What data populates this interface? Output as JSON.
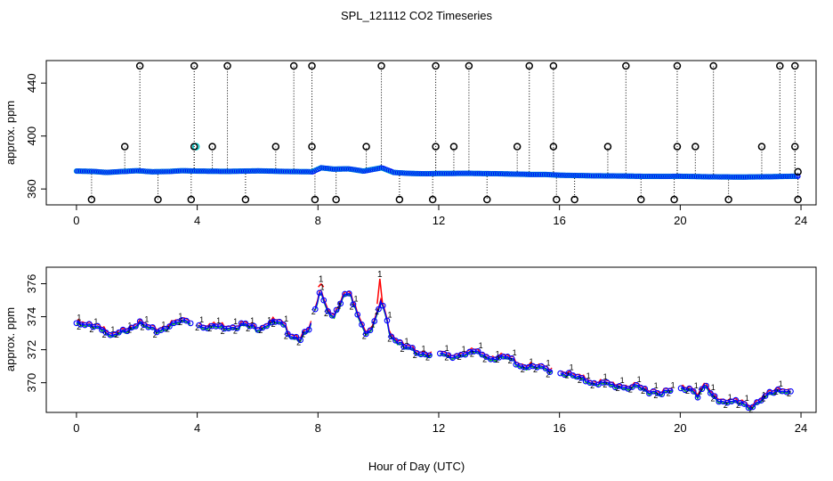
{
  "title": "SPL_121112  CO2 Timeseries",
  "xlabel": "Hour of Day (UTC)",
  "colors": {
    "red": "#ff0000",
    "green": "#00cc00",
    "blue": "#0000ff",
    "cyan": "#00cccc",
    "black": "#000000"
  },
  "chart_data": [
    {
      "type": "scatter",
      "name": "top-panel",
      "ylabel": "approx. ppm",
      "xlim": [
        -1,
        24.5
      ],
      "ylim": [
        348,
        457
      ],
      "xticks": [
        0,
        4,
        8,
        12,
        16,
        20,
        24
      ],
      "yticks": [
        360,
        400,
        440
      ],
      "baseline": [
        [
          0,
          373.5
        ],
        [
          0.5,
          373.3
        ],
        [
          1,
          372.5
        ],
        [
          1.5,
          373.2
        ],
        [
          2,
          373.8
        ],
        [
          2.5,
          373.0
        ],
        [
          3,
          373.2
        ],
        [
          3.5,
          373.8
        ],
        [
          4,
          373.5
        ],
        [
          5,
          373.3
        ],
        [
          6,
          373.7
        ],
        [
          7,
          373.2
        ],
        [
          7.8,
          373.0
        ],
        [
          8.1,
          376.0
        ],
        [
          8.5,
          375.0
        ],
        [
          9,
          375.2
        ],
        [
          9.5,
          373.5
        ],
        [
          10.1,
          376.0
        ],
        [
          10.5,
          372.5
        ],
        [
          11,
          371.8
        ],
        [
          11.5,
          371.5
        ],
        [
          12,
          371.7
        ],
        [
          13,
          371.8
        ],
        [
          14,
          371.5
        ],
        [
          15,
          371.0
        ],
        [
          15.5,
          371.0
        ],
        [
          16,
          370.4
        ],
        [
          17,
          370.0
        ],
        [
          18,
          369.8
        ],
        [
          19,
          369.5
        ],
        [
          20,
          369.6
        ],
        [
          21,
          369.2
        ],
        [
          22,
          369.0
        ],
        [
          23,
          369.3
        ],
        [
          23.7,
          369.6
        ]
      ],
      "outliers": [
        {
          "hour": 0.5,
          "value": 352
        },
        {
          "hour": 1.6,
          "value": 392
        },
        {
          "hour": 2.1,
          "value": 453
        },
        {
          "hour": 2.7,
          "value": 352
        },
        {
          "hour": 3.8,
          "value": 352
        },
        {
          "hour": 3.9,
          "value": 392
        },
        {
          "hour": 3.9,
          "value": 453
        },
        {
          "hour": 4.5,
          "value": 392
        },
        {
          "hour": 5.0,
          "value": 453
        },
        {
          "hour": 5.6,
          "value": 352
        },
        {
          "hour": 6.6,
          "value": 392
        },
        {
          "hour": 7.2,
          "value": 453
        },
        {
          "hour": 7.8,
          "value": 453
        },
        {
          "hour": 7.8,
          "value": 392
        },
        {
          "hour": 7.9,
          "value": 352
        },
        {
          "hour": 8.6,
          "value": 352
        },
        {
          "hour": 9.6,
          "value": 392
        },
        {
          "hour": 10.1,
          "value": 453
        },
        {
          "hour": 10.7,
          "value": 352
        },
        {
          "hour": 11.8,
          "value": 352
        },
        {
          "hour": 11.9,
          "value": 453
        },
        {
          "hour": 11.9,
          "value": 392
        },
        {
          "hour": 12.5,
          "value": 392
        },
        {
          "hour": 13.0,
          "value": 453
        },
        {
          "hour": 13.6,
          "value": 352
        },
        {
          "hour": 14.6,
          "value": 392
        },
        {
          "hour": 15.0,
          "value": 453
        },
        {
          "hour": 15.8,
          "value": 453
        },
        {
          "hour": 15.8,
          "value": 392
        },
        {
          "hour": 15.9,
          "value": 352
        },
        {
          "hour": 16.5,
          "value": 352
        },
        {
          "hour": 17.6,
          "value": 392
        },
        {
          "hour": 18.2,
          "value": 453
        },
        {
          "hour": 18.7,
          "value": 352
        },
        {
          "hour": 19.8,
          "value": 352
        },
        {
          "hour": 19.9,
          "value": 453
        },
        {
          "hour": 19.9,
          "value": 392
        },
        {
          "hour": 20.5,
          "value": 392
        },
        {
          "hour": 21.1,
          "value": 453
        },
        {
          "hour": 21.6,
          "value": 352
        },
        {
          "hour": 22.7,
          "value": 392
        },
        {
          "hour": 23.3,
          "value": 453
        },
        {
          "hour": 23.8,
          "value": 453
        },
        {
          "hour": 23.8,
          "value": 392
        },
        {
          "hour": 23.9,
          "value": 352
        },
        {
          "hour": 23.9,
          "value": 373
        }
      ]
    },
    {
      "type": "line",
      "name": "bottom-panel",
      "ylabel": "approx. ppm",
      "xlim": [
        -1,
        24.5
      ],
      "ylim": [
        368.2,
        377.0
      ],
      "xticks": [
        0,
        4,
        8,
        12,
        16,
        20,
        24
      ],
      "yticks": [
        370,
        372,
        374,
        376
      ],
      "gaps_hours": [
        [
          3.8,
          4.05
        ],
        [
          7.8,
          7.85
        ],
        [
          11.8,
          12.0
        ],
        [
          15.8,
          16.0
        ],
        [
          19.8,
          20.0
        ],
        [
          23.75,
          24
        ]
      ],
      "profile": [
        [
          0,
          373.7
        ],
        [
          0.3,
          373.5
        ],
        [
          0.6,
          373.6
        ],
        [
          0.9,
          373.4
        ],
        [
          1.1,
          372.8
        ],
        [
          1.4,
          373.0
        ],
        [
          1.7,
          373.4
        ],
        [
          2.0,
          373.7
        ],
        [
          2.3,
          373.5
        ],
        [
          2.6,
          373.2
        ],
        [
          3.0,
          373.5
        ],
        [
          3.3,
          373.7
        ],
        [
          3.6,
          373.9
        ],
        [
          3.78,
          373.8
        ],
        [
          4.05,
          373.6
        ],
        [
          4.5,
          373.5
        ],
        [
          5.0,
          373.5
        ],
        [
          5.5,
          373.6
        ],
        [
          6.0,
          373.4
        ],
        [
          6.5,
          373.8
        ],
        [
          6.8,
          373.6
        ],
        [
          7.1,
          373.0
        ],
        [
          7.4,
          372.8
        ],
        [
          7.7,
          373.2
        ],
        [
          7.9,
          374.3
        ],
        [
          8.1,
          375.8
        ],
        [
          8.3,
          374.6
        ],
        [
          8.5,
          374.1
        ],
        [
          8.7,
          374.5
        ],
        [
          8.9,
          375.5
        ],
        [
          9.1,
          375.3
        ],
        [
          9.3,
          374.4
        ],
        [
          9.5,
          373.4
        ],
        [
          9.7,
          373.0
        ],
        [
          9.9,
          373.8
        ],
        [
          10.1,
          375.1
        ],
        [
          10.25,
          374.2
        ],
        [
          10.4,
          373.0
        ],
        [
          10.6,
          372.6
        ],
        [
          10.9,
          372.2
        ],
        [
          11.2,
          372.0
        ],
        [
          11.5,
          371.9
        ],
        [
          11.8,
          371.8
        ],
        [
          12.0,
          371.8
        ],
        [
          12.4,
          371.6
        ],
        [
          12.8,
          371.9
        ],
        [
          13.2,
          371.9
        ],
        [
          13.6,
          371.7
        ],
        [
          14.0,
          371.6
        ],
        [
          14.4,
          371.5
        ],
        [
          14.8,
          371.1
        ],
        [
          15.2,
          371.0
        ],
        [
          15.6,
          370.9
        ],
        [
          15.8,
          370.9
        ],
        [
          16.0,
          370.8
        ],
        [
          16.5,
          370.4
        ],
        [
          17.0,
          370.2
        ],
        [
          17.5,
          370.0
        ],
        [
          18.0,
          369.9
        ],
        [
          18.5,
          369.8
        ],
        [
          19.0,
          369.6
        ],
        [
          19.5,
          369.5
        ],
        [
          19.8,
          369.6
        ],
        [
          20.0,
          369.7
        ],
        [
          20.4,
          369.8
        ],
        [
          20.6,
          369.3
        ],
        [
          20.8,
          369.9
        ],
        [
          21.0,
          369.4
        ],
        [
          21.3,
          369.0
        ],
        [
          21.6,
          369.0
        ],
        [
          22.0,
          368.8
        ],
        [
          22.3,
          368.6
        ],
        [
          22.6,
          369.0
        ],
        [
          23.0,
          369.4
        ],
        [
          23.4,
          369.6
        ],
        [
          23.7,
          369.7
        ]
      ],
      "spikes": [
        {
          "hour": 10.05,
          "value": 376.3
        },
        {
          "hour": 8.1,
          "value": 376.0
        }
      ]
    }
  ]
}
